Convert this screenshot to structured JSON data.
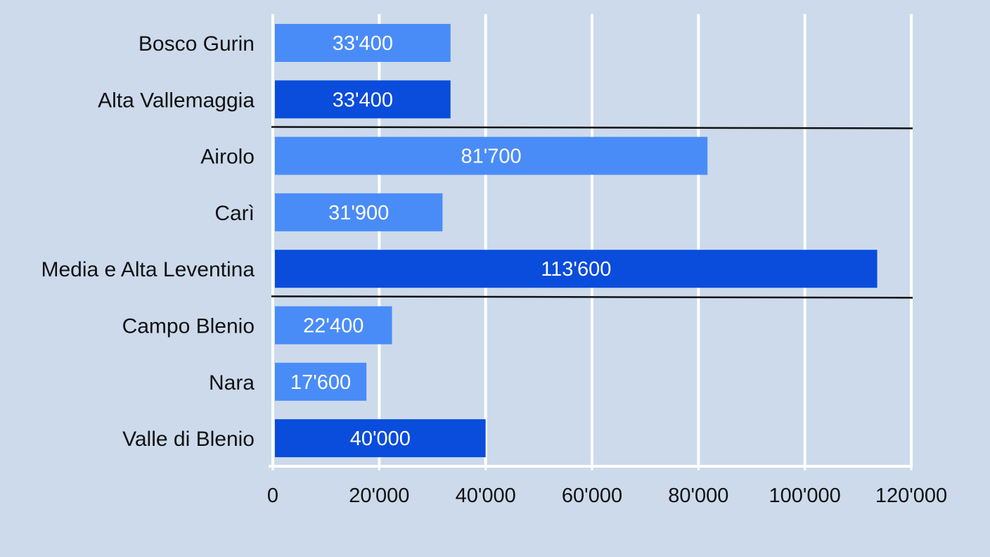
{
  "chart_data": {
    "type": "bar",
    "orientation": "horizontal",
    "title": "",
    "xlabel": "",
    "ylabel": "",
    "xlim": [
      0,
      120000
    ],
    "grid": true,
    "categories": [
      "Bosco Gurin",
      "Alta Vallemaggia",
      "Airolo",
      "Carì",
      "Media e Alta Leventina",
      "Campo Blenio",
      "Nara",
      "Valle di Blenio"
    ],
    "values": [
      33400,
      33400,
      81700,
      31900,
      113600,
      22400,
      17600,
      40000
    ],
    "value_labels": [
      "33'400",
      "33'400",
      "81'700",
      "31'900",
      "113'600",
      "22'400",
      "17'600",
      "40'000"
    ],
    "bar_colors": [
      "#4a8cf7",
      "#0a4cdb",
      "#4a8cf7",
      "#4a8cf7",
      "#0a4cdb",
      "#4a8cf7",
      "#4a8cf7",
      "#0a4cdb"
    ],
    "ticks": [
      0,
      20000,
      40000,
      60000,
      80000,
      100000,
      120000
    ],
    "tick_labels": [
      "0",
      "20'000",
      "40'000",
      "60'000",
      "80'000",
      "100'000",
      "120'000"
    ],
    "group_separators_after_index": [
      1,
      4
    ]
  }
}
